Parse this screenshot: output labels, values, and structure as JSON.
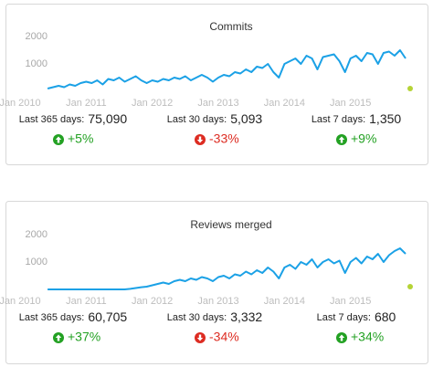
{
  "chart_data": [
    {
      "type": "line",
      "title": "Commits",
      "x": [
        "2010-06",
        "2010-07",
        "2010-08",
        "2010-09",
        "2010-10",
        "2010-11",
        "2010-12",
        "2011-01",
        "2011-02",
        "2011-03",
        "2011-04",
        "2011-05",
        "2011-06",
        "2011-07",
        "2011-08",
        "2011-09",
        "2011-10",
        "2011-11",
        "2011-12",
        "2012-01",
        "2012-02",
        "2012-03",
        "2012-04",
        "2012-05",
        "2012-06",
        "2012-07",
        "2012-08",
        "2012-09",
        "2012-10",
        "2012-11",
        "2012-12",
        "2013-01",
        "2013-02",
        "2013-03",
        "2013-04",
        "2013-05",
        "2013-06",
        "2013-07",
        "2013-08",
        "2013-09",
        "2013-10",
        "2013-11",
        "2013-12",
        "2014-01",
        "2014-02",
        "2014-03",
        "2014-04",
        "2014-05",
        "2014-06",
        "2014-07",
        "2014-08",
        "2014-09",
        "2014-10",
        "2014-11",
        "2014-12",
        "2015-01",
        "2015-02",
        "2015-03",
        "2015-04",
        "2015-05",
        "2015-06",
        "2015-07",
        "2015-08",
        "2015-09",
        "2015-10",
        "2015-11"
      ],
      "series": [
        {
          "color": "#1ba1e6",
          "values": [
            100,
            150,
            200,
            150,
            250,
            200,
            300,
            350,
            300,
            400,
            250,
            450,
            400,
            500,
            350,
            450,
            550,
            400,
            300,
            400,
            350,
            450,
            400,
            500,
            450,
            550,
            400,
            500,
            600,
            500,
            350,
            500,
            600,
            550,
            700,
            650,
            800,
            700,
            900,
            850,
            1000,
            700,
            500,
            1000,
            1100,
            1200,
            1000,
            1300,
            1200,
            800,
            1250,
            1300,
            1350,
            1100,
            700,
            1200,
            1300,
            1100,
            1400,
            1350,
            1000,
            1400,
            1450,
            1300,
            1500,
            1200
          ]
        }
      ],
      "xlim": [
        "2010-01",
        "2015-12"
      ],
      "xticks": [
        {
          "value": "2010-01",
          "label": "Jan 2010"
        },
        {
          "value": "2011-01",
          "label": "Jan 2011"
        },
        {
          "value": "2012-01",
          "label": "Jan 2012"
        },
        {
          "value": "2013-01",
          "label": "Jan 2013"
        },
        {
          "value": "2014-01",
          "label": "Jan 2014"
        },
        {
          "value": "2015-01",
          "label": "Jan 2015"
        }
      ],
      "ylim": [
        0,
        2000
      ],
      "yticks": [
        1000,
        2000
      ],
      "stats": [
        {
          "label": "Last 365 days:",
          "value": "75,090",
          "change": "+5%",
          "direction": "up"
        },
        {
          "label": "Last 30 days:",
          "value": "5,093",
          "change": "-33%",
          "direction": "down"
        },
        {
          "label": "Last 7 days:",
          "value": "1,350",
          "change": "+9%",
          "direction": "up"
        }
      ]
    },
    {
      "type": "line",
      "title": "Reviews merged",
      "x": [
        "2010-06",
        "2010-07",
        "2010-08",
        "2010-09",
        "2010-10",
        "2010-11",
        "2010-12",
        "2011-01",
        "2011-02",
        "2011-03",
        "2011-04",
        "2011-05",
        "2011-06",
        "2011-07",
        "2011-08",
        "2011-09",
        "2011-10",
        "2011-11",
        "2011-12",
        "2012-01",
        "2012-02",
        "2012-03",
        "2012-04",
        "2012-05",
        "2012-06",
        "2012-07",
        "2012-08",
        "2012-09",
        "2012-10",
        "2012-11",
        "2012-12",
        "2013-01",
        "2013-02",
        "2013-03",
        "2013-04",
        "2013-05",
        "2013-06",
        "2013-07",
        "2013-08",
        "2013-09",
        "2013-10",
        "2013-11",
        "2013-12",
        "2014-01",
        "2014-02",
        "2014-03",
        "2014-04",
        "2014-05",
        "2014-06",
        "2014-07",
        "2014-08",
        "2014-09",
        "2014-10",
        "2014-11",
        "2014-12",
        "2015-01",
        "2015-02",
        "2015-03",
        "2015-04",
        "2015-05",
        "2015-06",
        "2015-07",
        "2015-08",
        "2015-09",
        "2015-10",
        "2015-11"
      ],
      "series": [
        {
          "color": "#1ba1e6",
          "values": [
            0,
            0,
            0,
            0,
            0,
            0,
            0,
            0,
            0,
            0,
            0,
            0,
            0,
            0,
            0,
            20,
            50,
            80,
            100,
            150,
            200,
            250,
            200,
            300,
            350,
            300,
            400,
            350,
            450,
            400,
            300,
            450,
            500,
            400,
            550,
            500,
            650,
            550,
            700,
            600,
            800,
            650,
            400,
            800,
            900,
            750,
            1000,
            900,
            1100,
            800,
            1000,
            1100,
            950,
            1050,
            600,
            1000,
            1150,
            950,
            1200,
            1100,
            1300,
            1000,
            1250,
            1400,
            1500,
            1300
          ]
        }
      ],
      "xlim": [
        "2010-01",
        "2015-12"
      ],
      "xticks": [
        {
          "value": "2010-01",
          "label": "Jan 2010"
        },
        {
          "value": "2011-01",
          "label": "Jan 2011"
        },
        {
          "value": "2012-01",
          "label": "Jan 2012"
        },
        {
          "value": "2013-01",
          "label": "Jan 2013"
        },
        {
          "value": "2014-01",
          "label": "Jan 2014"
        },
        {
          "value": "2015-01",
          "label": "Jan 2015"
        }
      ],
      "ylim": [
        0,
        2000
      ],
      "yticks": [
        1000,
        2000
      ],
      "stats": [
        {
          "label": "Last 365 days:",
          "value": "60,705",
          "change": "+37%",
          "direction": "up"
        },
        {
          "label": "Last 30 days:",
          "value": "3,332",
          "change": "-34%",
          "direction": "down"
        },
        {
          "label": "Last 7 days:",
          "value": "680",
          "change": "+34%",
          "direction": "up"
        }
      ]
    }
  ]
}
